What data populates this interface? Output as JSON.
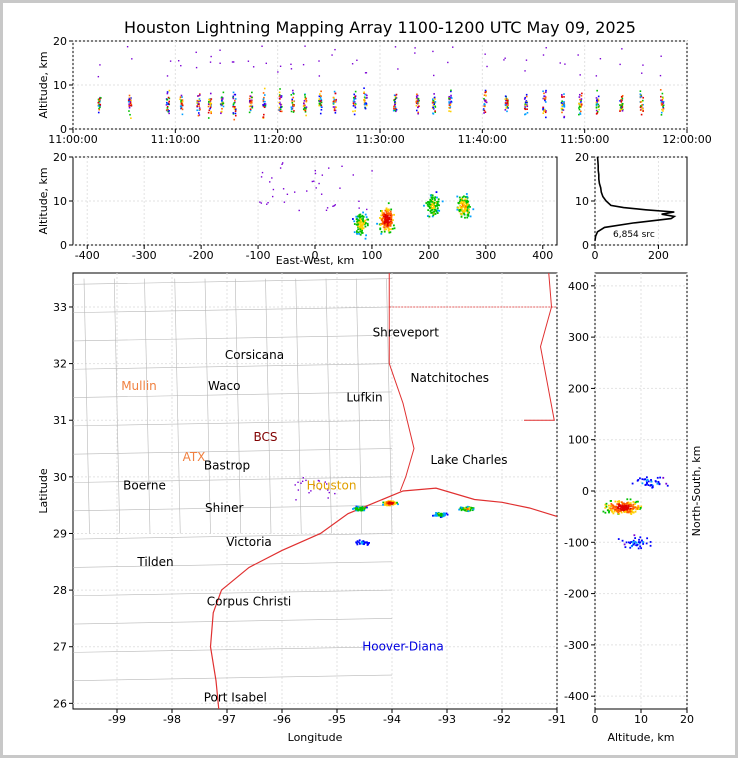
{
  "title": "Houston Lightning Mapping Array 1100-1200 UTC May 09, 2025",
  "colors": {
    "page_border": "#c8c8c8",
    "coast": "#e03030",
    "county": "#b8b8b8",
    "profile": "#000000"
  },
  "chart_data": [
    {
      "id": "time_altitude",
      "type": "scatter",
      "xlabel": "",
      "ylabel": "Altitude, km",
      "x_ticks": [
        "11:00:00",
        "11:10:00",
        "11:20:00",
        "11:30:00",
        "11:40:00",
        "11:50:00",
        "12:00:00"
      ],
      "xlim_minutes": [
        0,
        60
      ],
      "ylim": [
        0,
        20
      ],
      "y_ticks": [
        0,
        10,
        20
      ],
      "flash_times_minutes": [
        2.5,
        5.5,
        9.2,
        10.5,
        12.2,
        13.3,
        14.5,
        15.7,
        17.3,
        18.6,
        20.2,
        21.4,
        22.6,
        24.1,
        25.5,
        27.4,
        28.5,
        31.4,
        33.6,
        35.2,
        36.8,
        40.2,
        42.3,
        44.2,
        46.0,
        47.8,
        49.5,
        51.2,
        53.5,
        55.5,
        57.5
      ]
    },
    {
      "id": "east_west_altitude",
      "type": "scatter",
      "xlabel": "East-West, km",
      "ylabel": "Altitude, km",
      "x_ticks": [
        -400,
        -300,
        -200,
        -100,
        0,
        100,
        200,
        300,
        400
      ],
      "xlim": [
        -425,
        425
      ],
      "ylim": [
        0,
        20
      ],
      "y_ticks": [
        0,
        10,
        20
      ],
      "clusters": [
        {
          "x": 80,
          "z": 5,
          "weight": 0.6
        },
        {
          "x": 125,
          "z": 6,
          "weight": 1.0
        },
        {
          "x": 205,
          "z": 9,
          "weight": 0.6
        },
        {
          "x": 260,
          "z": 9,
          "weight": 0.7
        }
      ]
    },
    {
      "id": "altitude_histogram",
      "type": "line",
      "xlabel": "",
      "ylabel": "",
      "x_ticks": [
        0,
        200
      ],
      "xlim": [
        0,
        290
      ],
      "ylim": [
        0,
        20
      ],
      "y_ticks": [
        0,
        10,
        20
      ],
      "annotation": "6,854 src",
      "profile": [
        [
          0,
          1
        ],
        [
          2,
          2
        ],
        [
          8,
          3
        ],
        [
          30,
          4
        ],
        [
          120,
          5
        ],
        [
          240,
          6
        ],
        [
          250,
          6.5
        ],
        [
          210,
          7
        ],
        [
          250,
          7.5
        ],
        [
          160,
          8
        ],
        [
          90,
          8.5
        ],
        [
          50,
          9
        ],
        [
          35,
          10
        ],
        [
          25,
          11
        ],
        [
          20,
          12
        ],
        [
          18,
          13
        ],
        [
          14,
          14
        ],
        [
          12,
          15
        ],
        [
          12,
          16
        ],
        [
          10,
          17
        ],
        [
          10,
          18
        ],
        [
          9,
          19
        ],
        [
          8,
          20
        ]
      ]
    },
    {
      "id": "plan_view_map",
      "type": "scatter",
      "xlabel": "Longitude",
      "ylabel": "Latitude",
      "x_ticks": [
        -99,
        -98,
        -97,
        -96,
        -95,
        -94,
        -93,
        -92,
        -91
      ],
      "xlim": [
        -99.8,
        -91
      ],
      "y_ticks": [
        26,
        27,
        28,
        29,
        30,
        31,
        32,
        33
      ],
      "ylim": [
        25.9,
        33.6
      ],
      "clusters": [
        {
          "lon": -94.05,
          "lat": 29.55,
          "weight": 1.0
        },
        {
          "lon": -94.6,
          "lat": 29.45,
          "weight": 0.6
        },
        {
          "lon": -92.65,
          "lat": 29.45,
          "weight": 0.7
        },
        {
          "lon": -93.15,
          "lat": 29.35,
          "weight": 0.5
        },
        {
          "lon": -94.55,
          "lat": 28.85,
          "weight": 0.3
        }
      ],
      "cities": [
        {
          "name": "Shreveport",
          "lon": -93.75,
          "lat": 32.55,
          "color": "#000000"
        },
        {
          "name": "Corsicana",
          "lon": -96.5,
          "lat": 32.15,
          "color": "#000000"
        },
        {
          "name": "Mullin",
          "lon": -98.6,
          "lat": 31.6,
          "color": "#f08040"
        },
        {
          "name": "Waco",
          "lon": -97.05,
          "lat": 31.6,
          "color": "#000000"
        },
        {
          "name": "Natchitoches",
          "lon": -92.95,
          "lat": 31.75,
          "color": "#000000"
        },
        {
          "name": "Lufkin",
          "lon": -94.5,
          "lat": 31.4,
          "color": "#000000"
        },
        {
          "name": "BCS",
          "lon": -96.3,
          "lat": 30.7,
          "color": "#800000"
        },
        {
          "name": "ATX",
          "lon": -97.6,
          "lat": 30.35,
          "color": "#f08040"
        },
        {
          "name": "Bastrop",
          "lon": -97.0,
          "lat": 30.2,
          "color": "#000000"
        },
        {
          "name": "Lake Charles",
          "lon": -92.6,
          "lat": 30.3,
          "color": "#000000"
        },
        {
          "name": "Boerne",
          "lon": -98.5,
          "lat": 29.85,
          "color": "#000000"
        },
        {
          "name": "Houston",
          "lon": -95.1,
          "lat": 29.85,
          "color": "#e0a000"
        },
        {
          "name": "Shiner",
          "lon": -97.05,
          "lat": 29.45,
          "color": "#000000"
        },
        {
          "name": "Victoria",
          "lon": -96.6,
          "lat": 28.85,
          "color": "#000000"
        },
        {
          "name": "Tilden",
          "lon": -98.3,
          "lat": 28.5,
          "color": "#000000"
        },
        {
          "name": "Corpus Christi",
          "lon": -96.6,
          "lat": 27.8,
          "color": "#000000"
        },
        {
          "name": "Hoover-Diana",
          "lon": -93.8,
          "lat": 27.0,
          "color": "#0000e0"
        },
        {
          "name": "Port Isabel",
          "lon": -96.85,
          "lat": 26.1,
          "color": "#000000"
        }
      ]
    },
    {
      "id": "north_south_altitude",
      "type": "scatter",
      "xlabel": "Altitude, km",
      "ylabel": "North-South, km",
      "x_ticks": [
        0,
        10,
        20
      ],
      "xlim": [
        0,
        20
      ],
      "y_ticks": [
        -400,
        -300,
        -200,
        -100,
        0,
        100,
        200,
        300,
        400
      ],
      "ylim": [
        -425,
        425
      ],
      "clusters": [
        {
          "y": -30,
          "z": 6,
          "weight": 1.0
        },
        {
          "y": -100,
          "z": 9,
          "weight": 0.2
        },
        {
          "y": 20,
          "z": 12,
          "weight": 0.2
        }
      ]
    }
  ]
}
